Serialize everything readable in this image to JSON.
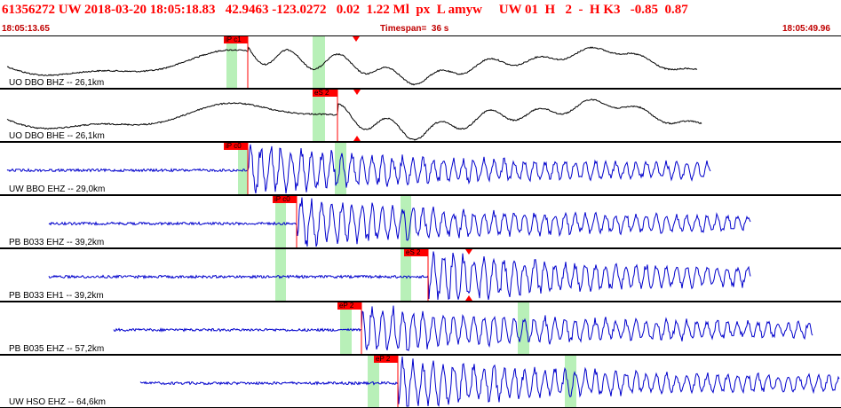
{
  "header": {
    "event_line": "61356272 UW 2018-03-20 18:05:18.83   42.9463 -123.0272   0.02  1.22 Ml  px  L amyw     UW 01  H   2  -  H K3   -0.85  0.87",
    "start_time": "18:05:13.65",
    "timespan": "Timespan=  36 s",
    "end_time": "18:05:49.96"
  },
  "colors": {
    "header_text": "#ff0000",
    "time_text": "#c00000",
    "trace_black": "#000000",
    "trace_blue": "#0000cc",
    "window_green": "#b8f0b8",
    "pick_red": "#ff0000"
  },
  "traces": [
    {
      "label": "UO DBO BHZ -- 26,1km",
      "color": "black"
    },
    {
      "label": "UO DBO BHE -- 26,1km",
      "color": "black"
    },
    {
      "label": "UW BBO EHZ -- 29,0km",
      "color": "blue"
    },
    {
      "label": "PB B033 EHZ -- 39,2km",
      "color": "blue"
    },
    {
      "label": "PB B033 EH1 -- 39,2km",
      "color": "blue"
    },
    {
      "label": "PB B035 EHZ -- 57,2km",
      "color": "blue"
    },
    {
      "label": "UW HSO EHZ -- 64,6km",
      "color": "blue"
    }
  ],
  "picks": [
    {
      "trace": 0,
      "label": "iP c1"
    },
    {
      "trace": 1,
      "label": "eS 2"
    },
    {
      "trace": 2,
      "label": "iP c0"
    },
    {
      "trace": 3,
      "label": "iP c0"
    },
    {
      "trace": 4,
      "label": "eS 2"
    },
    {
      "trace": 5,
      "label": "eP 2"
    },
    {
      "trace": 6,
      "label": "eP 2"
    }
  ]
}
